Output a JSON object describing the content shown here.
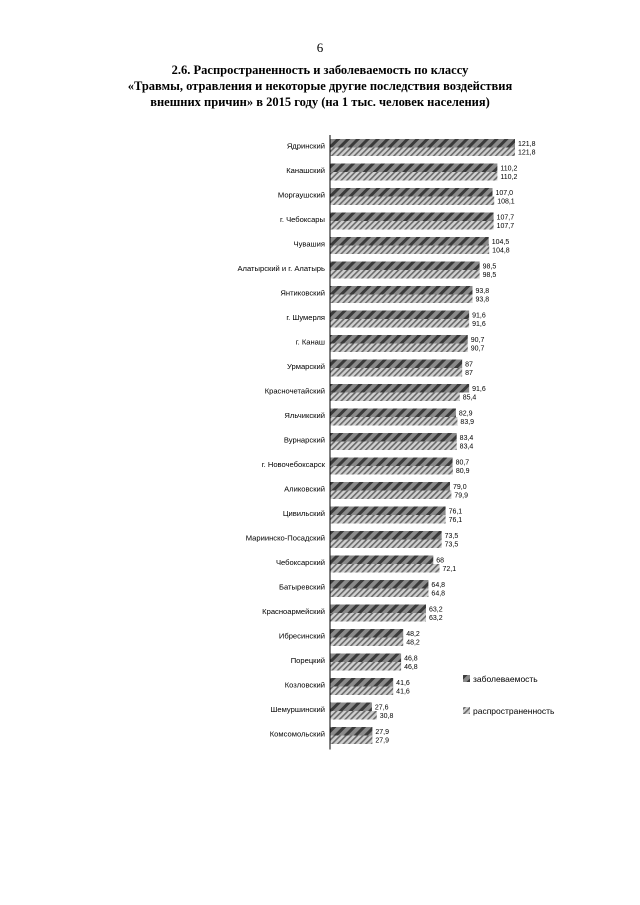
{
  "page": {
    "number": "6"
  },
  "title": {
    "line1": "2.6. Распространенность и заболеваемость по классу",
    "line2": "«Травмы, отравления и некоторые другие последствия воздействия",
    "line3": "внешних причин» в 2015 году (на 1 тыс. человек населения)"
  },
  "chart_data": {
    "type": "bar",
    "orientation": "horizontal",
    "categories": [
      "Ядринский",
      "Канашский",
      "Моргаушский",
      "г. Чебоксары",
      "Чувашия",
      "Алатырский  и г. Алатырь",
      "Янтиковский",
      "г. Шумерля",
      "г. Канаш",
      "Урмарский",
      "Красночетайский",
      "Яльчикский",
      "Вурнарский",
      "г. Новочебоксарск",
      "Аликовский",
      "Цивильский",
      "Мариинско-Посадский",
      "Чебоксарский",
      "Батыревский",
      "Красноармейский",
      "Ибресинский",
      "Порецкий",
      "Козловский",
      "Шемуршинский",
      "Комсомольский"
    ],
    "series": [
      {
        "name": "заболеваемость",
        "color": "#555555",
        "values": [
          121.8,
          110.2,
          107.0,
          107.7,
          104.5,
          98.5,
          93.8,
          91.6,
          90.7,
          87,
          91.6,
          82.9,
          83.4,
          80.7,
          79.0,
          76.1,
          73.5,
          68,
          64.8,
          63.2,
          48.2,
          46.8,
          41.6,
          27.6,
          27.9
        ],
        "labels": [
          "121,8",
          "110,2",
          "107,0",
          "107,7",
          "104,5",
          "98,5",
          "93,8",
          "91,6",
          "90,7",
          "87",
          "91,6",
          "82,9",
          "83,4",
          "80,7",
          "79,0",
          "76,1",
          "73,5",
          "68",
          "64,8",
          "63,2",
          "48,2",
          "46,8",
          "41,6",
          "27,6",
          "27,9"
        ]
      },
      {
        "name": "распространенность",
        "color": "#999999",
        "values": [
          121.8,
          110.2,
          108.1,
          107.7,
          104.8,
          98.5,
          93.8,
          91.6,
          90.7,
          87,
          85.4,
          83.9,
          83.4,
          80.9,
          79.9,
          76.1,
          73.5,
          72.1,
          64.8,
          63.2,
          48.2,
          46.8,
          41.6,
          30.8,
          27.9
        ],
        "labels": [
          "121,8",
          "110,2",
          "108,1",
          "107,7",
          "104,8",
          "98,5",
          "93,8",
          "91,6",
          "90,7",
          "87",
          "85,4",
          "83,9",
          "83,4",
          "80,9",
          "79,9",
          "76,1",
          "73,5",
          "72,1",
          "64,8",
          "63,2",
          "48,2",
          "46,8",
          "41,6",
          "30,8",
          "27,9"
        ]
      }
    ],
    "xlim": [
      0,
      125
    ],
    "grid": false,
    "legend_position": "right"
  }
}
